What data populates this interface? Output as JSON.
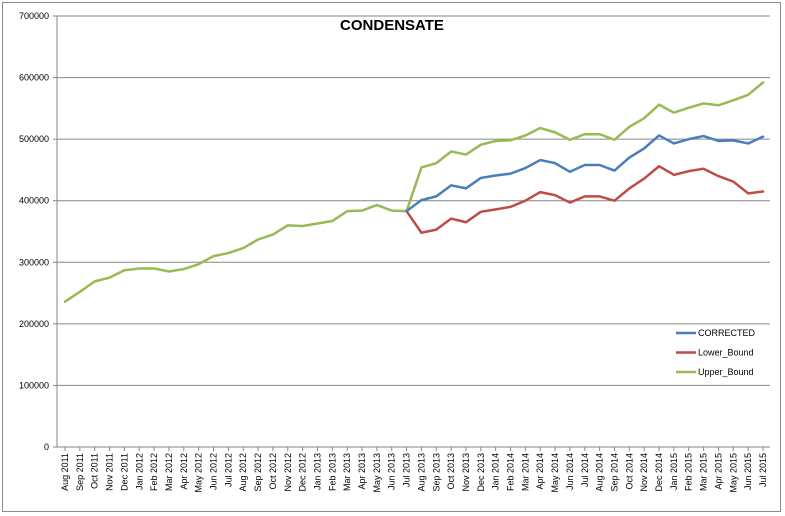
{
  "chart_data": {
    "type": "line",
    "title": "CONDENSATE",
    "xlabel": "",
    "ylabel": "",
    "ylim": [
      0,
      700000
    ],
    "y_ticks": [
      0,
      100000,
      200000,
      300000,
      400000,
      500000,
      600000,
      700000
    ],
    "grid": "horizontal",
    "legend_position": "bottom-right",
    "categories": [
      "Aug 2011",
      "Sep 2011",
      "Oct 2011",
      "Nov 2011",
      "Dec 2011",
      "Jan 2012",
      "Feb 2012",
      "Mar 2012",
      "Apr 2012",
      "May 2012",
      "Jun 2012",
      "Jul 2012",
      "Aug 2012",
      "Sep 2012",
      "Oct 2012",
      "Nov 2012",
      "Dec 2012",
      "Jan 2013",
      "Feb 2013",
      "Mar 2013",
      "Apr 2013",
      "May 2013",
      "Jun 2013",
      "Jul 2013",
      "Aug 2013",
      "Sep 2013",
      "Oct 2013",
      "Nov 2013",
      "Dec 2013",
      "Jan 2014",
      "Feb 2014",
      "Mar 2014",
      "Apr 2014",
      "May 2014",
      "Jun 2014",
      "Jul 2014",
      "Aug 2014",
      "Sep 2014",
      "Oct 2014",
      "Nov 2014",
      "Dec 2014",
      "Jan 2015",
      "Feb 2015",
      "Mar 2015",
      "Apr 2015",
      "May 2015",
      "Jun 2015",
      "Jul 2015"
    ],
    "series": [
      {
        "name": "CORRECTED",
        "color": "#4a7ebb",
        "values": [
          null,
          null,
          null,
          null,
          null,
          null,
          null,
          null,
          null,
          null,
          null,
          null,
          null,
          null,
          null,
          null,
          null,
          null,
          null,
          null,
          null,
          null,
          null,
          383000,
          401000,
          407000,
          425000,
          420000,
          437000,
          441000,
          444000,
          453000,
          466000,
          461000,
          447000,
          458000,
          458000,
          449000,
          470000,
          485000,
          506000,
          493000,
          500000,
          505000,
          497000,
          498000,
          493000,
          504000
        ]
      },
      {
        "name": "Lower_Bound",
        "color": "#be4b48",
        "values": [
          null,
          null,
          null,
          null,
          null,
          null,
          null,
          null,
          null,
          null,
          null,
          null,
          null,
          null,
          null,
          null,
          null,
          null,
          null,
          null,
          null,
          null,
          null,
          383000,
          348000,
          353000,
          371000,
          365000,
          382000,
          386000,
          390000,
          400000,
          414000,
          409000,
          397000,
          407000,
          407000,
          400000,
          420000,
          436000,
          456000,
          442000,
          448000,
          452000,
          440000,
          431000,
          412000,
          415000
        ]
      },
      {
        "name": "Upper_Bound",
        "color": "#98b954",
        "values": [
          236000,
          252000,
          269000,
          275000,
          287000,
          290000,
          290000,
          285000,
          289000,
          297000,
          310000,
          315000,
          323000,
          337000,
          345000,
          360000,
          359000,
          363000,
          367000,
          383000,
          384000,
          393000,
          384000,
          383000,
          454000,
          461000,
          480000,
          475000,
          491000,
          497000,
          498000,
          506000,
          518000,
          511000,
          499000,
          508000,
          508000,
          499000,
          520000,
          534000,
          556000,
          543000,
          551000,
          558000,
          555000,
          563000,
          572000,
          592000
        ]
      }
    ]
  }
}
